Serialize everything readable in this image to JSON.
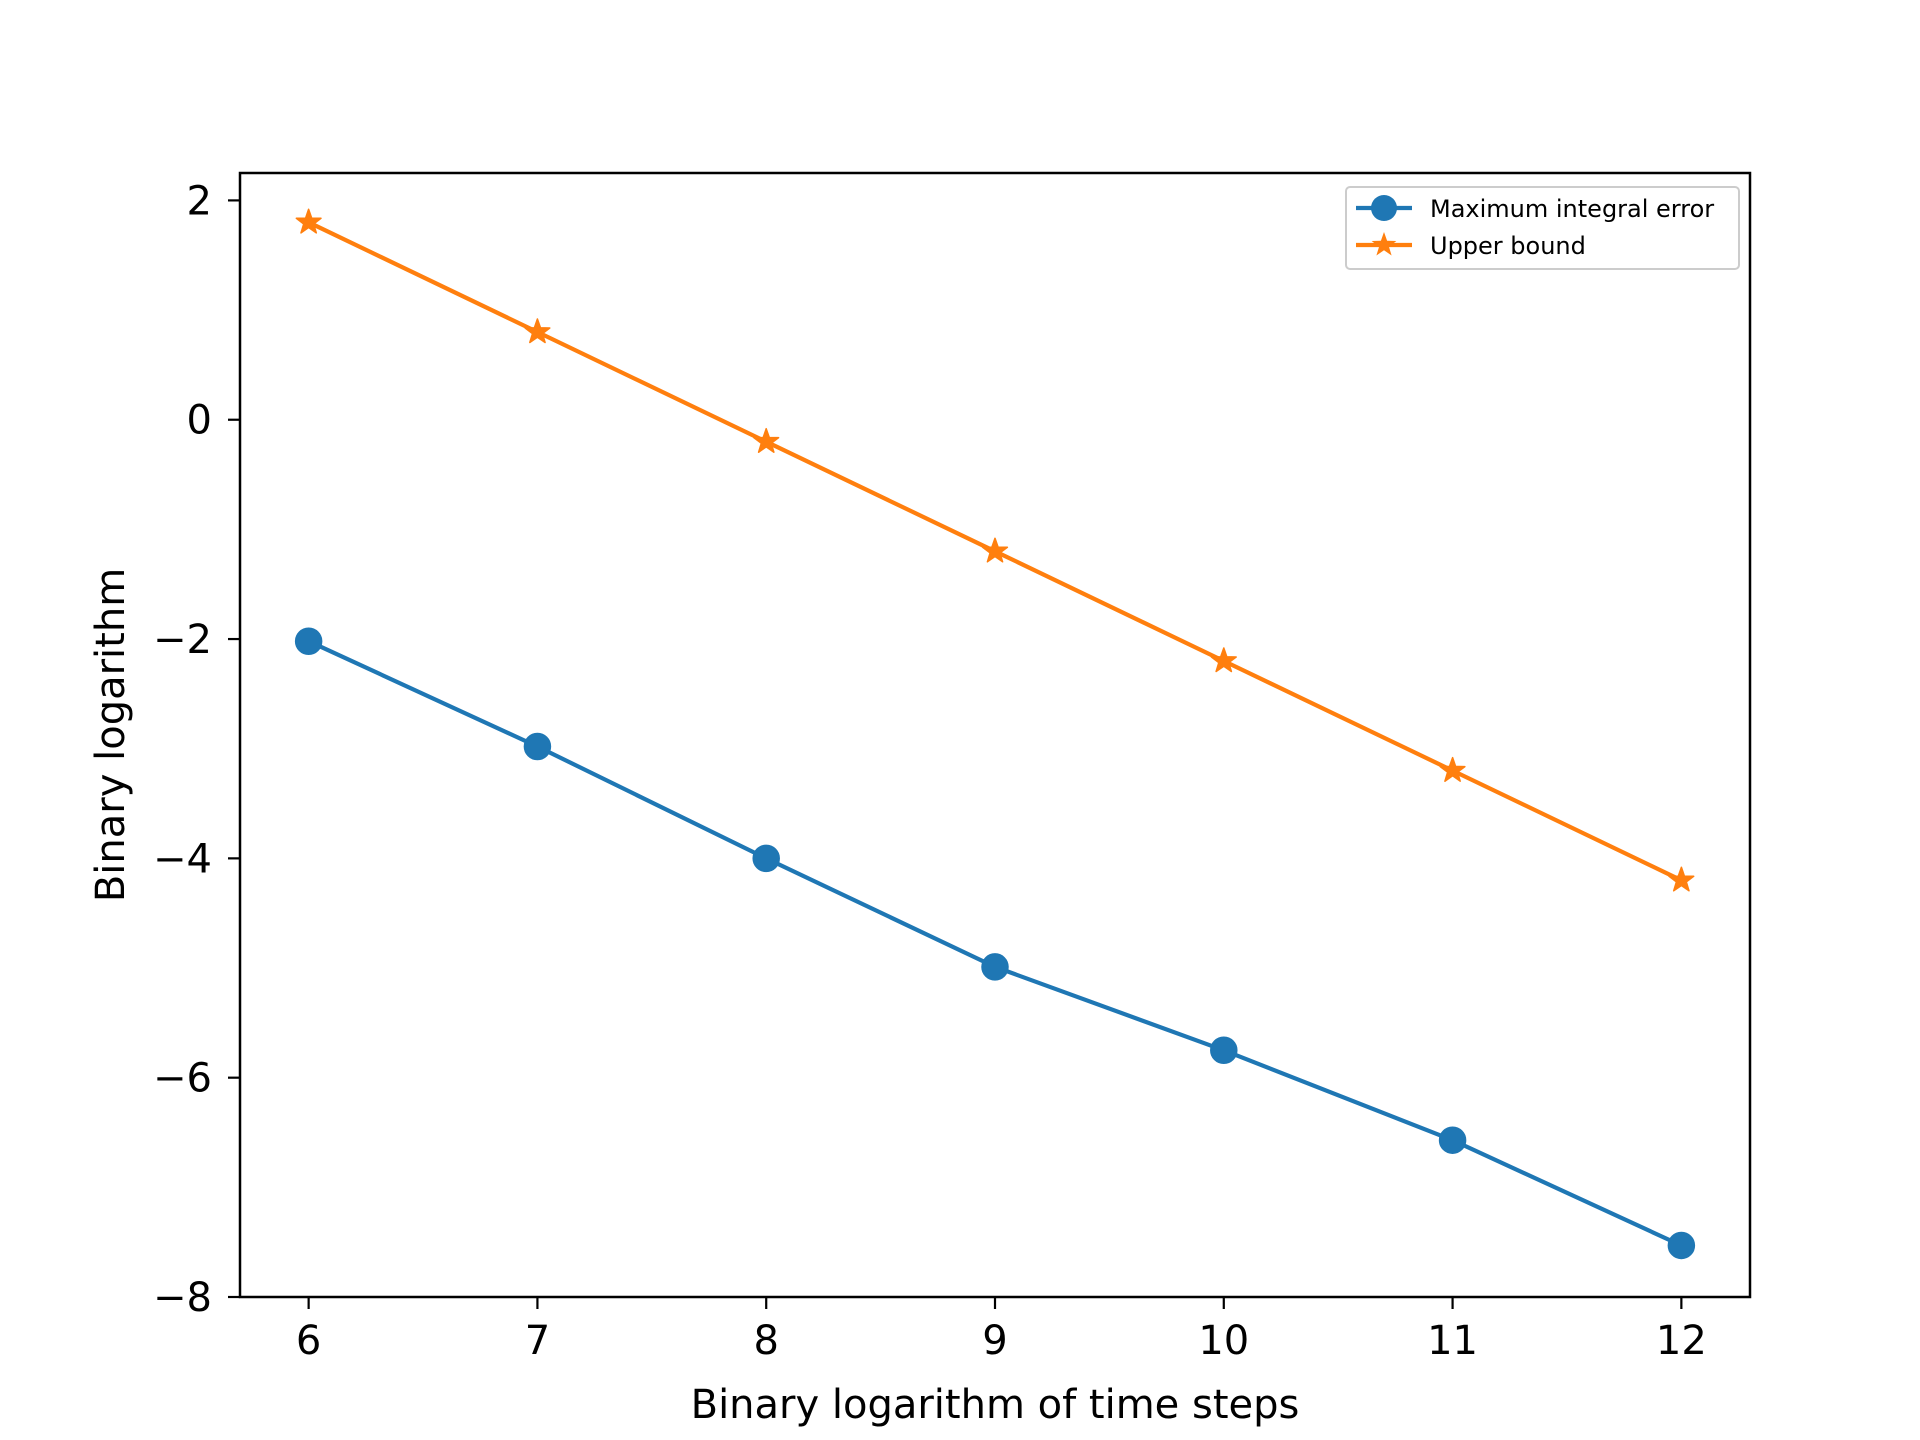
{
  "chart_data": {
    "type": "line",
    "title": "",
    "xlabel": "Binary logarithm of time steps",
    "ylabel": "Binary logarithm",
    "xlim": [
      5.7,
      12.3
    ],
    "ylim": [
      -8,
      2.25
    ],
    "xticks": [
      6,
      7,
      8,
      9,
      10,
      11,
      12
    ],
    "yticks": [
      2,
      0,
      -2,
      -4,
      -6,
      -8
    ],
    "xtick_labels": [
      "6",
      "7",
      "8",
      "9",
      "10",
      "11",
      "12"
    ],
    "ytick_labels": [
      "2",
      "0",
      "−2",
      "−4",
      "−6",
      "−8"
    ],
    "grid": false,
    "legend_position": "upper right",
    "x": [
      6,
      7,
      8,
      9,
      10,
      11,
      12
    ],
    "series": [
      {
        "name": "Maximum integral error",
        "values": [
          -2.02,
          -2.98,
          -4.0,
          -4.99,
          -5.75,
          -6.57,
          -7.53
        ],
        "color": "#1f77b4",
        "marker": "circle"
      },
      {
        "name": "Upper bound",
        "values": [
          1.8,
          0.8,
          -0.2,
          -1.2,
          -2.2,
          -3.2,
          -4.2
        ],
        "color": "#ff7f0e",
        "marker": "star"
      }
    ]
  }
}
